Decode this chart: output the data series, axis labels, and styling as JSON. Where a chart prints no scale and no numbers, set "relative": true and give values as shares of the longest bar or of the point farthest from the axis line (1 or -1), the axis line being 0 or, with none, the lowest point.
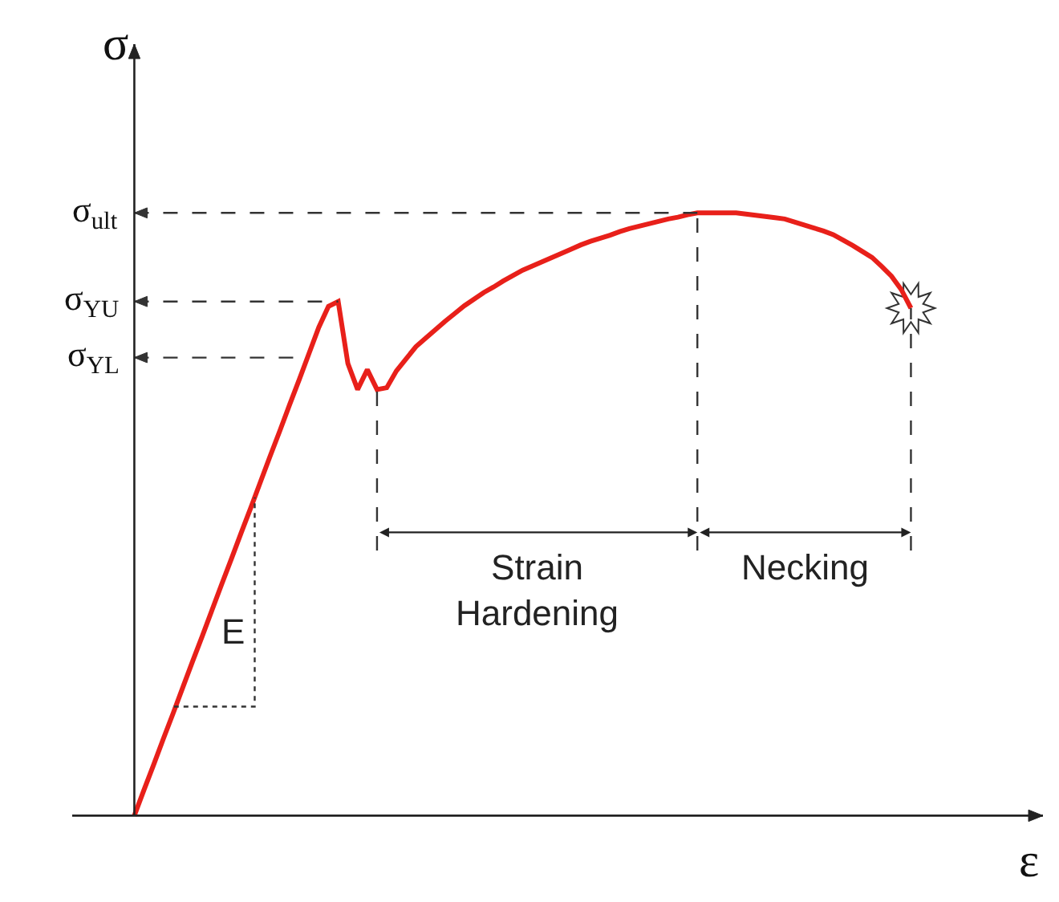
{
  "chart_data": {
    "type": "line",
    "relative": true,
    "xlabel": "ε",
    "ylabel": "σ",
    "marker": "none",
    "line_style": "solid",
    "categories": [
      null,
      null,
      null,
      null,
      null,
      null,
      null,
      null,
      null,
      null,
      null,
      null,
      null,
      null,
      null,
      null,
      null,
      null,
      null,
      null,
      null,
      null,
      null,
      null,
      null,
      null,
      null,
      null,
      null,
      null,
      null,
      null,
      null,
      null,
      null,
      null,
      null,
      null,
      null,
      null,
      null,
      null,
      null,
      null,
      null,
      null,
      null,
      null,
      null,
      null,
      null,
      null,
      null,
      null,
      null,
      null,
      null,
      null,
      null,
      null,
      null,
      null,
      null,
      null,
      null,
      null,
      null,
      null,
      null,
      null,
      null,
      null,
      null,
      null,
      null,
      null,
      null,
      null,
      null,
      null,
      null
    ],
    "series": [
      {
        "color": "#e8201a",
        "values": [
          0,
          0.043,
          0.085,
          0.128,
          0.17,
          0.213,
          0.256,
          0.298,
          0.341,
          0.384,
          0.426,
          0.469,
          0.511,
          0.554,
          0.597,
          0.639,
          0.682,
          0.724,
          0.767,
          0.81,
          0.845,
          0.853,
          0.75,
          0.707,
          0.74,
          0.707,
          0.71,
          0.738,
          0.758,
          0.778,
          0.792,
          0.806,
          0.82,
          0.833,
          0.846,
          0.857,
          0.868,
          0.877,
          0.887,
          0.896,
          0.905,
          0.912,
          0.919,
          0.926,
          0.933,
          0.94,
          0.947,
          0.953,
          0.958,
          0.963,
          0.969,
          0.974,
          0.978,
          0.982,
          0.986,
          0.99,
          0.993,
          0.997,
          1.0,
          1.0,
          1.0,
          1.0,
          1.0,
          0.998,
          0.996,
          0.994,
          0.992,
          0.99,
          0.985,
          0.98,
          0.975,
          0.97,
          0.964,
          0.955,
          0.946,
          0.936,
          0.926,
          0.911,
          0.895,
          0.873,
          0.842
        ]
      }
    ],
    "ref_lines": [
      {
        "axis": "y",
        "value": 1.0,
        "label": "σ$_{ult}$",
        "color": "#333333",
        "line_style": "dashed"
      },
      {
        "axis": "y",
        "value": 0.853,
        "label": "σ$_{YU}$",
        "color": "#333333",
        "line_style": "dashed"
      },
      {
        "axis": "y",
        "value": 0.76,
        "label": "σ$_{YL}$",
        "color": "#333333",
        "line_style": "dashed"
      }
    ],
    "annotations": [
      "E",
      "Strain\nHardening",
      "Necking"
    ]
  }
}
